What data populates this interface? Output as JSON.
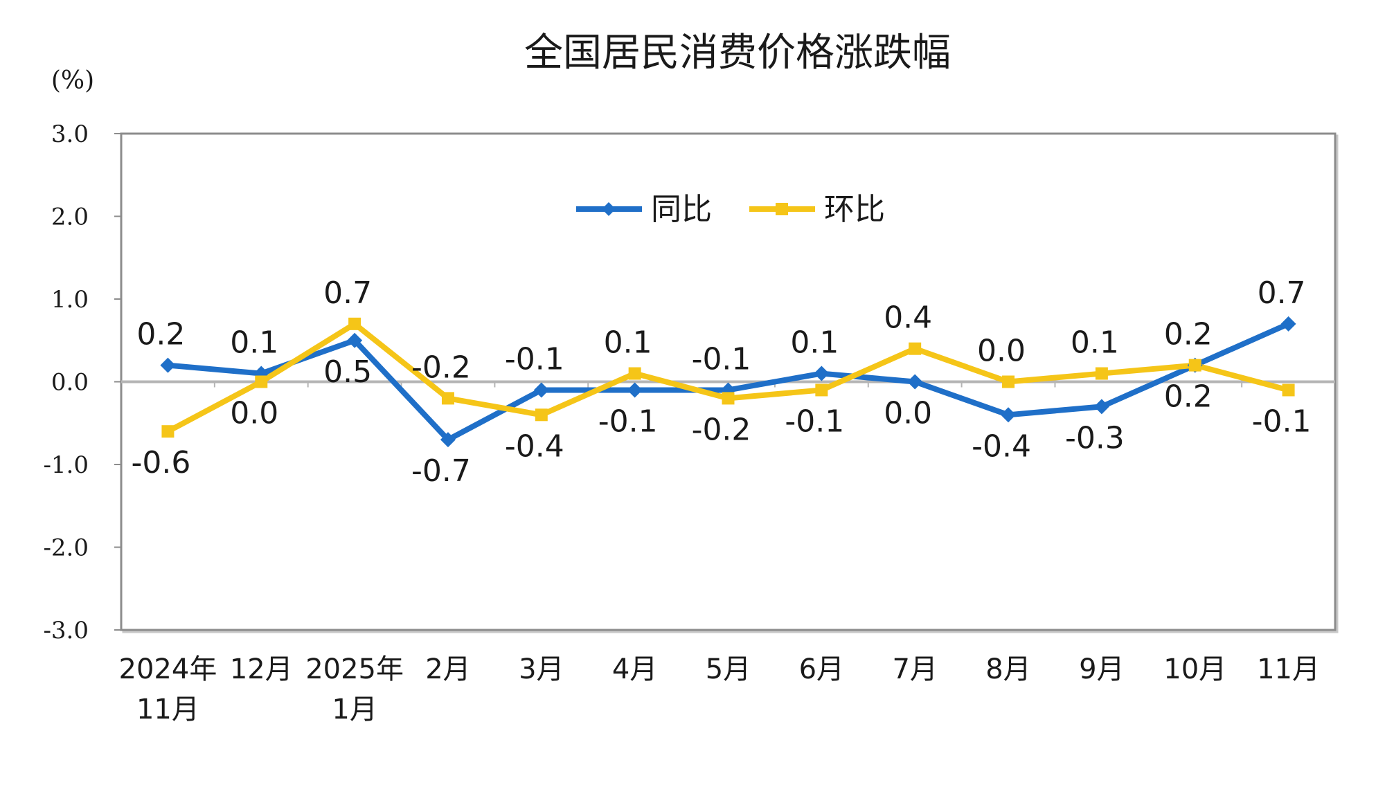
{
  "chart_data": {
    "type": "line",
    "title": "全国居民消费价格涨跌幅",
    "ylabel": "(%)",
    "ylim": [
      -3.0,
      3.0
    ],
    "yticks": [
      "3.0",
      "2.0",
      "1.0",
      "0.0",
      "-1.0",
      "-2.0",
      "-3.0"
    ],
    "categories": [
      [
        "2024年",
        "11月"
      ],
      [
        "12月"
      ],
      [
        "2025年",
        "1月"
      ],
      [
        "2月"
      ],
      [
        "3月"
      ],
      [
        "4月"
      ],
      [
        "5月"
      ],
      [
        "6月"
      ],
      [
        "7月"
      ],
      [
        "8月"
      ],
      [
        "9月"
      ],
      [
        "10月"
      ],
      [
        "11月"
      ]
    ],
    "series": [
      {
        "name": "同比",
        "color": "#1f6fc8",
        "marker": "diamond",
        "values": [
          0.2,
          0.1,
          0.5,
          -0.7,
          -0.1,
          -0.1,
          -0.1,
          0.1,
          0.0,
          -0.4,
          -0.3,
          0.2,
          0.7
        ],
        "labels": [
          "0.2",
          "0.1",
          "0.5",
          "-0.7",
          "-0.1",
          "-0.1",
          "-0.1",
          "0.1",
          "0.0",
          "-0.4",
          "-0.3",
          "0.2",
          "0.7"
        ]
      },
      {
        "name": "环比",
        "color": "#f5c518",
        "marker": "square",
        "values": [
          -0.6,
          0.0,
          0.7,
          -0.2,
          -0.4,
          0.1,
          -0.2,
          -0.1,
          0.4,
          0.0,
          0.1,
          0.2,
          -0.1
        ],
        "labels": [
          "-0.6",
          "0.0",
          "0.7",
          "-0.2",
          "-0.4",
          "0.1",
          "-0.2",
          "-0.1",
          "0.4",
          "0.0",
          "0.1",
          "0.2",
          "-0.1"
        ]
      }
    ],
    "legend_position": "top-center",
    "grid": false,
    "zero_line": true
  }
}
